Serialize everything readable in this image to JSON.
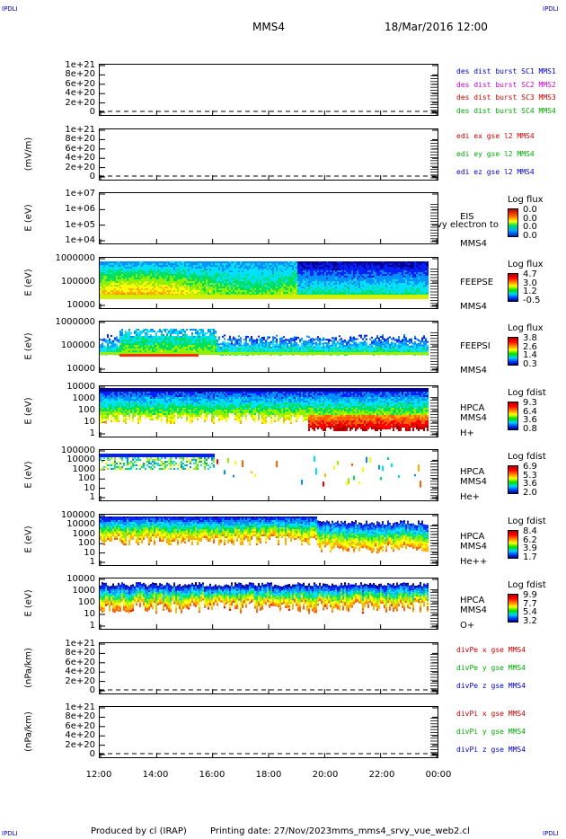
{
  "corners": {
    "tl": "IPDLI",
    "tr": "IPDLI",
    "bl": "IPDLI",
    "br": "IPDLI"
  },
  "header": {
    "spacecraft": "MMS4",
    "datetime": "18/Mar/2016 12:00"
  },
  "x_ticks": [
    "12:00",
    "14:00",
    "16:00",
    "18:00",
    "20:00",
    "22:00",
    "00:00"
  ],
  "footer": {
    "produced": "Produced by cl (IRAP)",
    "printed": "Printing date: 27/Nov/2023",
    "file": "mms_mms4_srvy_vue_web2.cl"
  },
  "panels": [
    {
      "ylabel": "",
      "ticks": [
        "1e+21",
        "8e+20",
        "6e+20",
        "4e+20",
        "2e+20",
        "0"
      ],
      "legend": [
        {
          "text": "des dist burst SC1 MMS1",
          "color": "#0000cc"
        },
        {
          "text": "des dist burst SC2 MMS2",
          "color": "#cc00cc"
        },
        {
          "text": "des dist burst SC3 MMS3",
          "color": "#cc0000"
        },
        {
          "text": "des dist burst SC4 MMS4",
          "color": "#00aa00"
        }
      ]
    },
    {
      "ylabel": "(mV/m)",
      "ticks": [
        "1e+21",
        "8e+20",
        "6e+20",
        "4e+20",
        "2e+20",
        "0"
      ],
      "legend": [
        {
          "text": "edi ex gse l2 MMS4",
          "color": "#cc0000"
        },
        {
          "text": "edi ey gse l2 MMS4",
          "color": "#00aa00"
        },
        {
          "text": "edi ez gse l2 MMS4",
          "color": "#0000cc"
        }
      ]
    },
    {
      "ylabel": "E (eV)",
      "ticks": [
        "1e+07",
        "1e+06",
        "1e+05",
        "1e+04"
      ],
      "side": [
        "EIS",
        "MMS4"
      ],
      "overlay": "Ivy electron to",
      "cb_title": "Log flux",
      "cb_ticks": [
        "0.0",
        "0.0",
        "0.0",
        "0.0"
      ]
    },
    {
      "ylabel": "E (eV)",
      "ticks": [
        "1000000",
        "100000",
        "10000"
      ],
      "side": [
        "FEEPSE",
        "MMS4"
      ],
      "cb_title": "Log flux",
      "cb_ticks": [
        "4.7",
        "3.0",
        "1.2",
        "-0.5"
      ]
    },
    {
      "ylabel": "E (eV)",
      "ticks": [
        "1000000",
        "100000",
        "10000"
      ],
      "side": [
        "FEEPSI",
        "MMS4"
      ],
      "cb_title": "Log flux",
      "cb_ticks": [
        "3.8",
        "2.6",
        "1.4",
        "0.3"
      ]
    },
    {
      "ylabel": "E (eV)",
      "ticks": [
        "10000",
        "1000",
        "100",
        "10",
        "1"
      ],
      "side": [
        "HPCA",
        "MMS4",
        "H+"
      ],
      "cb_title": "Log fdist",
      "cb_ticks": [
        "9.3",
        "6.4",
        "3.6",
        "0.8"
      ]
    },
    {
      "ylabel": "E (eV)",
      "ticks": [
        "100000",
        "10000",
        "1000",
        "100",
        "10",
        "1"
      ],
      "side": [
        "HPCA",
        "MMS4",
        "He+"
      ],
      "cb_title": "Log fdist",
      "cb_ticks": [
        "6.9",
        "5.3",
        "3.6",
        "2.0"
      ]
    },
    {
      "ylabel": "E (eV)",
      "ticks": [
        "100000",
        "10000",
        "1000",
        "100",
        "10",
        "1"
      ],
      "side": [
        "HPCA",
        "MMS4",
        "He++"
      ],
      "cb_title": "Log fdist",
      "cb_ticks": [
        "8.4",
        "6.2",
        "3.9",
        "1.7"
      ]
    },
    {
      "ylabel": "E (eV)",
      "ticks": [
        "10000",
        "1000",
        "100",
        "10",
        "1"
      ],
      "side": [
        "HPCA",
        "MMS4",
        "O+"
      ],
      "cb_title": "Log fdist",
      "cb_ticks": [
        "9.9",
        "7.7",
        "5.4",
        "3.2"
      ]
    },
    {
      "ylabel": "(nPa/km)",
      "ticks": [
        "1e+21",
        "8e+20",
        "6e+20",
        "4e+20",
        "2e+20",
        "0"
      ],
      "legend": [
        {
          "text": "divPe x gse MMS4",
          "color": "#cc0000"
        },
        {
          "text": "divPe y gse MMS4",
          "color": "#00aa00"
        },
        {
          "text": "divPe z gse MMS4",
          "color": "#0000cc"
        }
      ]
    },
    {
      "ylabel": "(nPa/km)",
      "ticks": [
        "1e+21",
        "8e+20",
        "6e+20",
        "4e+20",
        "2e+20",
        "0"
      ],
      "legend": [
        {
          "text": "divPi x gse MMS4",
          "color": "#cc0000"
        },
        {
          "text": "divPi y gse MMS4",
          "color": "#00aa00"
        },
        {
          "text": "divPi z gse MMS4",
          "color": "#0000cc"
        }
      ]
    }
  ],
  "chart_data": {
    "type": "heatmap",
    "title": "MMS4 18/Mar/2016 12:00",
    "x_range": [
      "12:00",
      "00:00"
    ],
    "x_ticks": [
      "12:00",
      "14:00",
      "16:00",
      "18:00",
      "20:00",
      "22:00",
      "00:00"
    ],
    "line_panels_ylim": [
      0,
      1e+21
    ],
    "spectrograms": [
      {
        "name": "EIS",
        "units": "Log flux",
        "ylim_eV": [
          10000.0,
          10000000.0
        ],
        "colorbar": [
          0.0,
          0.0,
          0.0,
          0.0
        ]
      },
      {
        "name": "FEEPSE",
        "units": "Log flux",
        "ylim_eV": [
          10000.0,
          1000000.0
        ],
        "colorbar": [
          4.7,
          3.0,
          1.2,
          -0.5
        ]
      },
      {
        "name": "FEEPSI",
        "units": "Log flux",
        "ylim_eV": [
          10000.0,
          1000000.0
        ],
        "colorbar": [
          3.8,
          2.6,
          1.4,
          0.3
        ]
      },
      {
        "name": "HPCA H+",
        "units": "Log fdist",
        "ylim_eV": [
          1,
          10000.0
        ],
        "colorbar": [
          9.3,
          6.4,
          3.6,
          0.8
        ]
      },
      {
        "name": "HPCA He+",
        "units": "Log fdist",
        "ylim_eV": [
          1,
          100000.0
        ],
        "colorbar": [
          6.9,
          5.3,
          3.6,
          2.0
        ]
      },
      {
        "name": "HPCA He++",
        "units": "Log fdist",
        "ylim_eV": [
          1,
          100000.0
        ],
        "colorbar": [
          8.4,
          6.2,
          3.9,
          1.7
        ]
      },
      {
        "name": "HPCA O+",
        "units": "Log fdist",
        "ylim_eV": [
          1,
          10000.0
        ],
        "colorbar": [
          9.9,
          7.7,
          5.4,
          3.2
        ]
      }
    ]
  }
}
